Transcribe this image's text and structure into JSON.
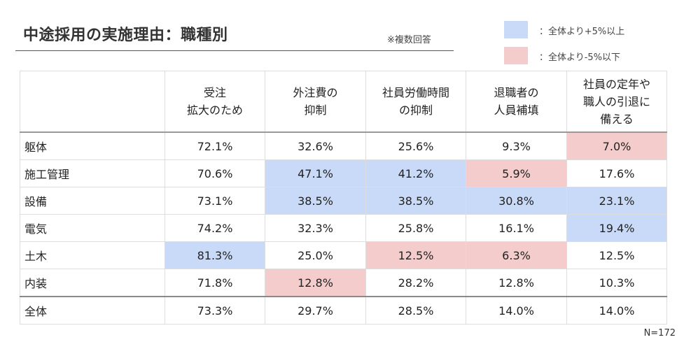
{
  "title": "中途採用の実施理由：職種別",
  "note": "※複数回答",
  "legend": {
    "up_label": "：全体より+5%以上",
    "down_label": "：全体より-5%以下",
    "up_color": "#c9daf8",
    "down_color": "#f4cccc"
  },
  "columns": [
    "受注\n拡大のため",
    "外注費の\n抑制",
    "社員労働時間\nの抑制",
    "退職者の\n人員補填",
    "社員の定年や\n職人の引退に\n備える"
  ],
  "rows": [
    {
      "label": "躯体",
      "values": [
        "72.1%",
        "32.6%",
        "25.6%",
        "9.3%",
        "7.0%"
      ],
      "flags": [
        "",
        "",
        "",
        "",
        "down"
      ]
    },
    {
      "label": "施工管理",
      "values": [
        "70.6%",
        "47.1%",
        "41.2%",
        "5.9%",
        "17.6%"
      ],
      "flags": [
        "",
        "up",
        "up",
        "down",
        ""
      ]
    },
    {
      "label": "設備",
      "values": [
        "73.1%",
        "38.5%",
        "38.5%",
        "30.8%",
        "23.1%"
      ],
      "flags": [
        "",
        "up",
        "up",
        "up",
        "up"
      ]
    },
    {
      "label": "電気",
      "values": [
        "74.2%",
        "32.3%",
        "25.8%",
        "16.1%",
        "19.4%"
      ],
      "flags": [
        "",
        "",
        "",
        "",
        "up"
      ]
    },
    {
      "label": "土木",
      "values": [
        "81.3%",
        "25.0%",
        "12.5%",
        "6.3%",
        "12.5%"
      ],
      "flags": [
        "up",
        "",
        "down",
        "down",
        ""
      ]
    },
    {
      "label": "内装",
      "values": [
        "71.8%",
        "12.8%",
        "28.2%",
        "12.8%",
        "10.3%"
      ],
      "flags": [
        "",
        "down",
        "",
        "",
        ""
      ]
    }
  ],
  "total": {
    "label": "全体",
    "values": [
      "73.3%",
      "29.7%",
      "28.5%",
      "14.0%",
      "14.0%"
    ]
  },
  "sample": "N=172"
}
